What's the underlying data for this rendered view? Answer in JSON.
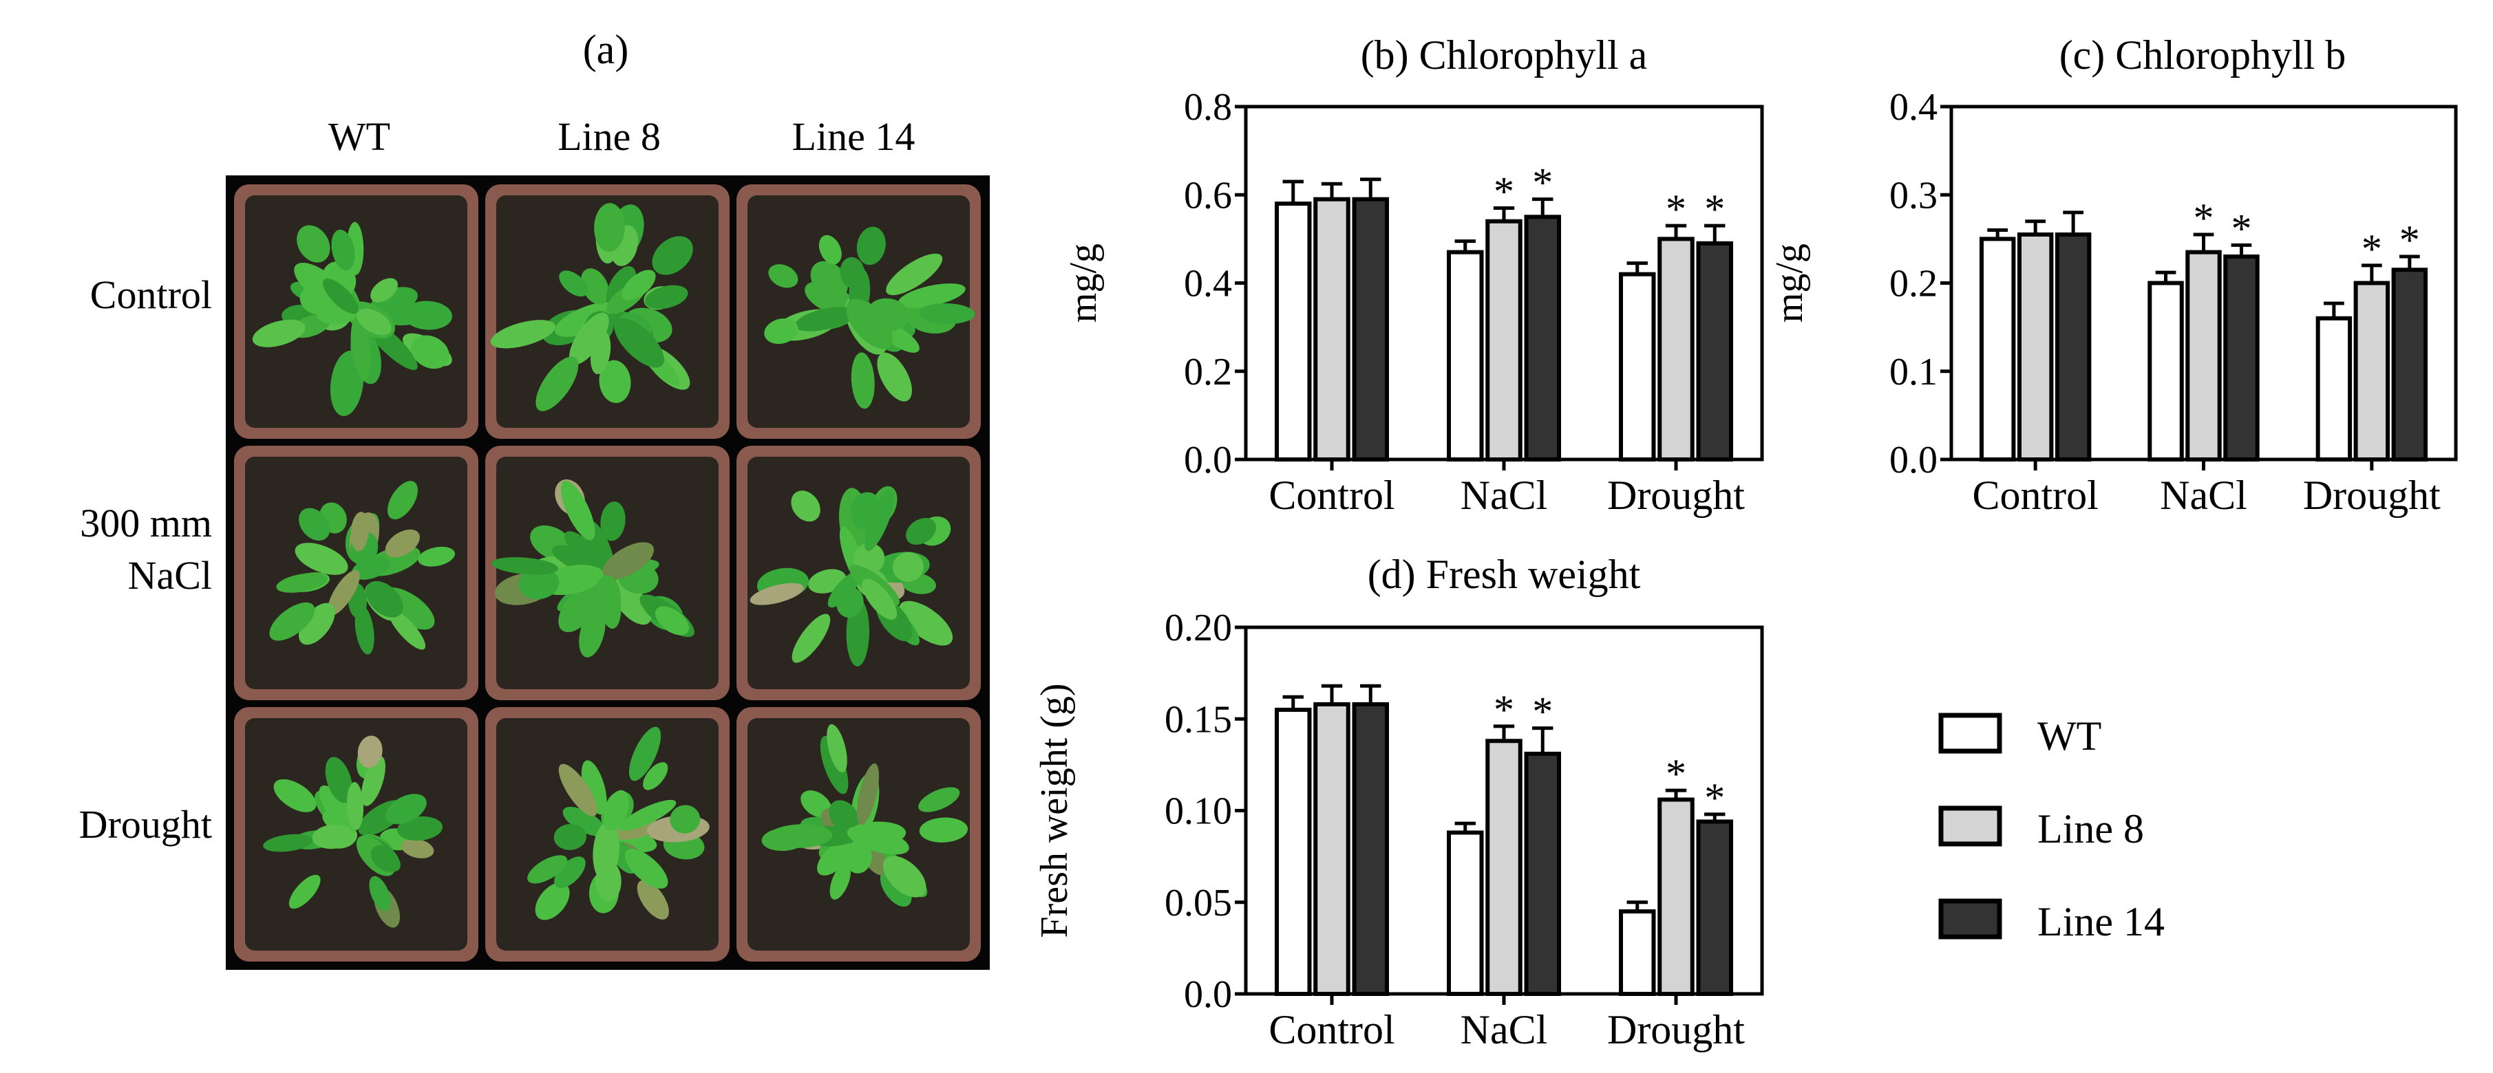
{
  "figure": {
    "panel_a": {
      "label": "(a)",
      "columns": [
        "WT",
        "Line 8",
        "Line 14"
      ],
      "rows": [
        {
          "label_lines": [
            "Control"
          ],
          "severity": 0.0
        },
        {
          "label_lines": [
            "300 mm",
            "NaCl"
          ],
          "severity": 0.45
        },
        {
          "label_lines": [
            "Drought"
          ],
          "severity": 0.8
        }
      ]
    },
    "legend": [
      {
        "name": "WT",
        "color": "#ffffff"
      },
      {
        "name": "Line 8",
        "color": "#d4d4d4"
      },
      {
        "name": "Line 14",
        "color": "#333333"
      }
    ]
  },
  "chart_data": [
    {
      "type": "bar",
      "title": "(b) Chlorophyll a",
      "ylabel": "mg/g",
      "xlabel": "",
      "ylim": [
        0,
        0.8
      ],
      "yticks": [
        "0.0",
        "0.2",
        "0.4",
        "0.6",
        "0.8"
      ],
      "categories": [
        "Control",
        "NaCl",
        "Drought"
      ],
      "series": [
        {
          "name": "WT",
          "values": [
            0.58,
            0.47,
            0.42
          ],
          "errors": [
            0.05,
            0.025,
            0.025
          ],
          "significant": [
            false,
            false,
            false
          ]
        },
        {
          "name": "Line 8",
          "values": [
            0.59,
            0.54,
            0.5
          ],
          "errors": [
            0.035,
            0.03,
            0.03
          ],
          "significant": [
            false,
            true,
            true
          ]
        },
        {
          "name": "Line 14",
          "values": [
            0.59,
            0.55,
            0.49
          ],
          "errors": [
            0.045,
            0.04,
            0.04
          ],
          "significant": [
            false,
            true,
            true
          ]
        }
      ]
    },
    {
      "type": "bar",
      "title": "(c) Chlorophyll b",
      "ylabel": "mg/g",
      "xlabel": "",
      "ylim": [
        0,
        0.4
      ],
      "yticks": [
        "0.0",
        "0.1",
        "0.2",
        "0.3",
        "0.4"
      ],
      "categories": [
        "Control",
        "NaCl",
        "Drought"
      ],
      "series": [
        {
          "name": "WT",
          "values": [
            0.25,
            0.2,
            0.16
          ],
          "errors": [
            0.01,
            0.012,
            0.017
          ],
          "significant": [
            false,
            false,
            false
          ]
        },
        {
          "name": "Line 8",
          "values": [
            0.255,
            0.235,
            0.2
          ],
          "errors": [
            0.015,
            0.02,
            0.02
          ],
          "significant": [
            false,
            true,
            true
          ]
        },
        {
          "name": "Line 14",
          "values": [
            0.255,
            0.23,
            0.215
          ],
          "errors": [
            0.025,
            0.013,
            0.015
          ],
          "significant": [
            false,
            true,
            true
          ]
        }
      ]
    },
    {
      "type": "bar",
      "title": "(d) Fresh weight",
      "ylabel": "Fresh weight (g)",
      "xlabel": "",
      "ylim": [
        0,
        0.2
      ],
      "yticks": [
        "0.0",
        "0.05",
        "0.10",
        "0.15",
        "0.20"
      ],
      "categories": [
        "Control",
        "NaCl",
        "Drought"
      ],
      "series": [
        {
          "name": "WT",
          "values": [
            0.155,
            0.088,
            0.045
          ],
          "errors": [
            0.007,
            0.005,
            0.005
          ],
          "significant": [
            false,
            false,
            false
          ]
        },
        {
          "name": "Line 8",
          "values": [
            0.158,
            0.138,
            0.106
          ],
          "errors": [
            0.01,
            0.008,
            0.005
          ],
          "significant": [
            false,
            true,
            true
          ]
        },
        {
          "name": "Line 14",
          "values": [
            0.158,
            0.131,
            0.094
          ],
          "errors": [
            0.01,
            0.014,
            0.004
          ],
          "significant": [
            false,
            true,
            true
          ]
        }
      ]
    }
  ]
}
